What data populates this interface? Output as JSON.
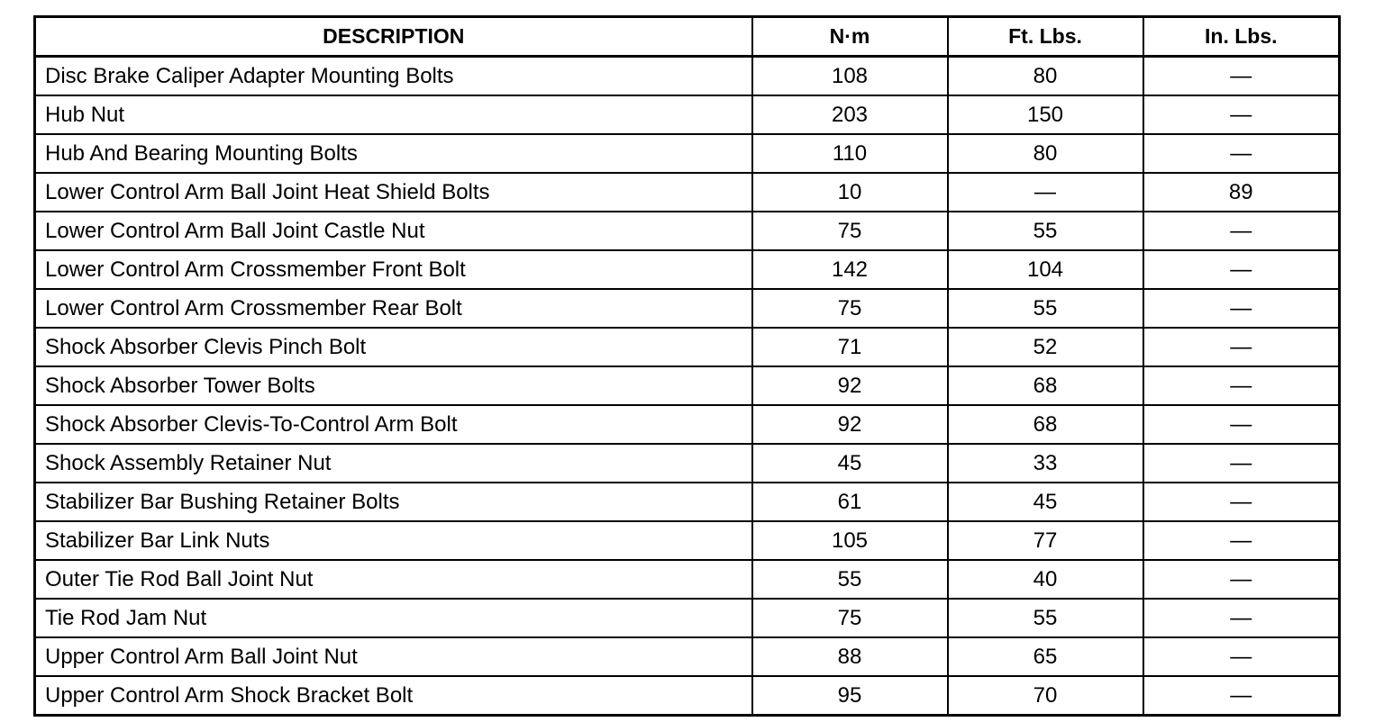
{
  "headers": [
    "DESCRIPTION",
    "N·m",
    "Ft. Lbs.",
    "In. Lbs."
  ],
  "rows": [
    [
      "Disc Brake Caliper Adapter Mounting Bolts",
      "108",
      "80",
      "—"
    ],
    [
      "Hub Nut",
      "203",
      "150",
      "—"
    ],
    [
      "Hub And Bearing Mounting Bolts",
      "110",
      "80",
      "—"
    ],
    [
      "Lower Control Arm Ball Joint Heat Shield Bolts",
      "10",
      "—",
      "89"
    ],
    [
      "Lower Control Arm Ball Joint Castle Nut",
      "75",
      "55",
      "—"
    ],
    [
      "Lower Control Arm Crossmember Front Bolt",
      "142",
      "104",
      "—"
    ],
    [
      "Lower Control Arm Crossmember Rear Bolt",
      "75",
      "55",
      "—"
    ],
    [
      "Shock Absorber Clevis Pinch Bolt",
      "71",
      "52",
      "—"
    ],
    [
      "Shock Absorber Tower Bolts",
      "92",
      "68",
      "—"
    ],
    [
      "Shock Absorber Clevis-To-Control Arm Bolt",
      "92",
      "68",
      "—"
    ],
    [
      "Shock Assembly Retainer Nut",
      "45",
      "33",
      "—"
    ],
    [
      "Stabilizer Bar Bushing Retainer Bolts",
      "61",
      "45",
      "—"
    ],
    [
      "Stabilizer Bar Link Nuts",
      "105",
      "77",
      "—"
    ],
    [
      "Outer Tie Rod Ball Joint Nut",
      "55",
      "40",
      "—"
    ],
    [
      "Tie Rod Jam Nut",
      "75",
      "55",
      "—"
    ],
    [
      "Upper Control Arm Ball Joint Nut",
      "88",
      "65",
      "—"
    ],
    [
      "Upper Control Arm Shock Bracket Bolt",
      "95",
      "70",
      "—"
    ]
  ]
}
